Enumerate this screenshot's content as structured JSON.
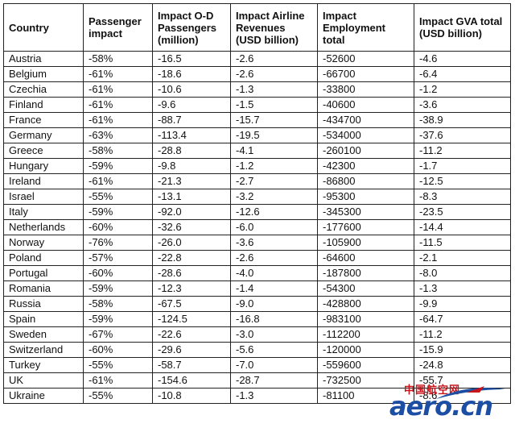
{
  "table": {
    "headers": [
      "Country",
      "Passenger impact",
      "Impact O-D Passengers (million)",
      "Impact Airline Revenues (USD billion)",
      "Impact Employment total",
      "Impact GVA total (USD billion)"
    ],
    "rows": [
      [
        "Austria",
        "-58%",
        "-16.5",
        "-2.6",
        "-52600",
        "-4.6"
      ],
      [
        "Belgium",
        "-61%",
        "-18.6",
        "-2.6",
        "-66700",
        "-6.4"
      ],
      [
        "Czechia",
        "-61%",
        "-10.6",
        "-1.3",
        "-33800",
        "-1.2"
      ],
      [
        "Finland",
        "-61%",
        "-9.6",
        "-1.5",
        "-40600",
        "-3.6"
      ],
      [
        "France",
        "-61%",
        "-88.7",
        "-15.7",
        "-434700",
        "-38.9"
      ],
      [
        "Germany",
        "-63%",
        "-113.4",
        "-19.5",
        "-534000",
        "-37.6"
      ],
      [
        "Greece",
        "-58%",
        "-28.8",
        "-4.1",
        "-260100",
        "-11.2"
      ],
      [
        "Hungary",
        "-59%",
        "-9.8",
        "-1.2",
        "-42300",
        "-1.7"
      ],
      [
        "Ireland",
        "-61%",
        "-21.3",
        "-2.7",
        "-86800",
        "-12.5"
      ],
      [
        "Israel",
        "-55%",
        "-13.1",
        "-3.2",
        "-95300",
        "-8.3"
      ],
      [
        "Italy",
        "-59%",
        "-92.0",
        "-12.6",
        "-345300",
        "-23.5"
      ],
      [
        "Netherlands",
        "-60%",
        "-32.6",
        "-6.0",
        "-177600",
        "-14.4"
      ],
      [
        "Norway",
        "-76%",
        "-26.0",
        "-3.6",
        "-105900",
        "-11.5"
      ],
      [
        "Poland",
        "-57%",
        "-22.8",
        "-2.6",
        "-64600",
        "-2.1"
      ],
      [
        "Portugal",
        "-60%",
        "-28.6",
        "-4.0",
        "-187800",
        "-8.0"
      ],
      [
        "Romania",
        "-59%",
        "-12.3",
        "-1.4",
        "-54300",
        "-1.3"
      ],
      [
        "Russia",
        "-58%",
        "-67.5",
        "-9.0",
        "-428800",
        "-9.9"
      ],
      [
        "Spain",
        "-59%",
        "-124.5",
        "-16.8",
        "-983100",
        "-64.7"
      ],
      [
        "Sweden",
        "-67%",
        "-22.6",
        "-3.0",
        "-112200",
        "-11.2"
      ],
      [
        "Switzerland",
        "-60%",
        "-29.6",
        "-5.6",
        "-120000",
        "-15.9"
      ],
      [
        "Turkey",
        "-55%",
        "-58.7",
        "-7.0",
        "-559600",
        "-24.8"
      ],
      [
        "UK",
        "-61%",
        "-154.6",
        "-28.7",
        "-732500",
        "-55.7"
      ],
      [
        "Ukraine",
        "-55%",
        "-10.8",
        "-1.3",
        "-81100",
        "-8.6"
      ]
    ]
  },
  "watermark": {
    "cn_text": "中国航空网",
    "en_text": "aero.cn",
    "colors": {
      "red": "#c8141b",
      "blue": "#1c4fa3"
    }
  }
}
